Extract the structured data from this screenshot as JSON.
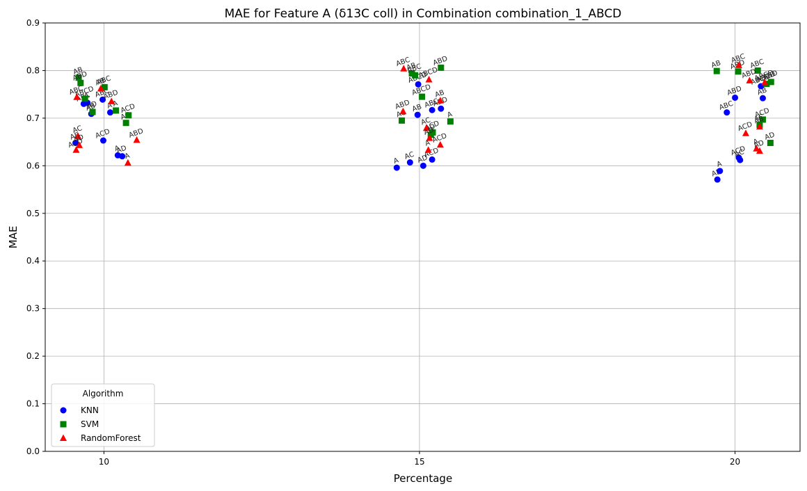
{
  "chart_data": {
    "type": "scatter",
    "title": "MAE for Feature A (δ13C coll) in Combination combination_1_ABCD",
    "xlabel": "Percentage",
    "ylabel": "MAE",
    "xlim": [
      9.07,
      21.03
    ],
    "ylim": [
      0,
      0.9
    ],
    "xticks": [
      10,
      15,
      20
    ],
    "yticks": [
      0.0,
      0.1,
      0.2,
      0.3,
      0.4,
      0.5,
      0.6,
      0.7,
      0.8,
      0.9
    ],
    "grid": true,
    "legend": {
      "title": "Algorithm",
      "position": "lower-left"
    },
    "series": [
      {
        "name": "KNN",
        "color": "#0000ff",
        "marker": "circle",
        "points": [
          {
            "x": 9.68,
            "y": 0.73,
            "label": "ABC"
          },
          {
            "x": 9.74,
            "y": 0.732,
            "label": "A"
          },
          {
            "x": 9.8,
            "y": 0.709,
            "label": "AB"
          },
          {
            "x": 9.98,
            "y": 0.739,
            "label": "ABC"
          },
          {
            "x": 10.1,
            "y": 0.712,
            "label": "A"
          },
          {
            "x": 9.55,
            "y": 0.648,
            "label": "AB"
          },
          {
            "x": 9.99,
            "y": 0.653,
            "label": "ACD"
          },
          {
            "x": 10.22,
            "y": 0.622,
            "label": "A"
          },
          {
            "x": 10.29,
            "y": 0.62,
            "label": "AD"
          },
          {
            "x": 14.64,
            "y": 0.596,
            "label": "A"
          },
          {
            "x": 14.85,
            "y": 0.607,
            "label": "AC"
          },
          {
            "x": 15.06,
            "y": 0.6,
            "label": "AD"
          },
          {
            "x": 15.2,
            "y": 0.613,
            "label": "ACD"
          },
          {
            "x": 14.97,
            "y": 0.707,
            "label": "AB"
          },
          {
            "x": 15.2,
            "y": 0.717,
            "label": "ABC"
          },
          {
            "x": 15.34,
            "y": 0.72,
            "label": "ABD"
          },
          {
            "x": 14.98,
            "y": 0.771,
            "label": "ABCD"
          },
          {
            "x": 19.72,
            "y": 0.571,
            "label": "AD"
          },
          {
            "x": 19.76,
            "y": 0.589,
            "label": "A"
          },
          {
            "x": 20.06,
            "y": 0.617,
            "label": "ACD"
          },
          {
            "x": 20.08,
            "y": 0.612,
            "label": "AC"
          },
          {
            "x": 19.87,
            "y": 0.712,
            "label": "ABC"
          },
          {
            "x": 20.0,
            "y": 0.743,
            "label": "ABD"
          },
          {
            "x": 20.44,
            "y": 0.742,
            "label": "AB"
          },
          {
            "x": 20.41,
            "y": 0.767,
            "label": "ABCD"
          }
        ]
      },
      {
        "name": "SVM",
        "color": "#008000",
        "marker": "square",
        "points": [
          {
            "x": 9.6,
            "y": 0.785,
            "label": "AB"
          },
          {
            "x": 9.63,
            "y": 0.774,
            "label": "ABD"
          },
          {
            "x": 9.7,
            "y": 0.741,
            "label": "ABCD"
          },
          {
            "x": 9.82,
            "y": 0.713,
            "label": "AD"
          },
          {
            "x": 10.01,
            "y": 0.765,
            "label": "ABC"
          },
          {
            "x": 10.19,
            "y": 0.716,
            "label": "A"
          },
          {
            "x": 10.35,
            "y": 0.69,
            "label": "AC"
          },
          {
            "x": 10.39,
            "y": 0.706,
            "label": "ACD"
          },
          {
            "x": 14.72,
            "y": 0.695,
            "label": "AC"
          },
          {
            "x": 14.88,
            "y": 0.794,
            "label": "AB"
          },
          {
            "x": 14.93,
            "y": 0.79,
            "label": "ABC"
          },
          {
            "x": 15.04,
            "y": 0.745,
            "label": "ABCD"
          },
          {
            "x": 15.21,
            "y": 0.67,
            "label": "ACD"
          },
          {
            "x": 15.18,
            "y": 0.665,
            "label": "AD"
          },
          {
            "x": 15.34,
            "y": 0.806,
            "label": "ABD"
          },
          {
            "x": 15.49,
            "y": 0.693,
            "label": "A"
          },
          {
            "x": 19.71,
            "y": 0.799,
            "label": "AB"
          },
          {
            "x": 20.05,
            "y": 0.798,
            "label": "ABD"
          },
          {
            "x": 20.39,
            "y": 0.686,
            "label": "AC"
          },
          {
            "x": 20.44,
            "y": 0.697,
            "label": "ACD"
          },
          {
            "x": 20.36,
            "y": 0.8,
            "label": "ABC"
          },
          {
            "x": 20.5,
            "y": 0.772,
            "label": "ABCD"
          },
          {
            "x": 20.57,
            "y": 0.776,
            "label": "ABD"
          },
          {
            "x": 20.56,
            "y": 0.648,
            "label": "AD"
          }
        ]
      },
      {
        "name": "RandomForest",
        "color": "#ff0000",
        "marker": "triangle",
        "points": [
          {
            "x": 9.57,
            "y": 0.744,
            "label": "ABC"
          },
          {
            "x": 9.56,
            "y": 0.633,
            "label": "ACD"
          },
          {
            "x": 9.59,
            "y": 0.662,
            "label": "AC"
          },
          {
            "x": 9.61,
            "y": 0.643,
            "label": "AD"
          },
          {
            "x": 9.95,
            "y": 0.762,
            "label": "AB"
          },
          {
            "x": 10.12,
            "y": 0.735,
            "label": "ABD"
          },
          {
            "x": 10.38,
            "y": 0.606,
            "label": "A"
          },
          {
            "x": 10.52,
            "y": 0.654,
            "label": "ABD"
          },
          {
            "x": 14.75,
            "y": 0.804,
            "label": "ABC"
          },
          {
            "x": 14.74,
            "y": 0.714,
            "label": "ABD"
          },
          {
            "x": 15.11,
            "y": 0.679,
            "label": "AC"
          },
          {
            "x": 15.16,
            "y": 0.658,
            "label": "AD"
          },
          {
            "x": 15.14,
            "y": 0.633,
            "label": "A"
          },
          {
            "x": 15.15,
            "y": 0.781,
            "label": "ABCD"
          },
          {
            "x": 15.33,
            "y": 0.737,
            "label": "AB"
          },
          {
            "x": 15.33,
            "y": 0.644,
            "label": "ACD"
          },
          {
            "x": 20.06,
            "y": 0.811,
            "label": "ABC"
          },
          {
            "x": 20.17,
            "y": 0.668,
            "label": "ACD"
          },
          {
            "x": 20.23,
            "y": 0.779,
            "label": "ABD"
          },
          {
            "x": 20.34,
            "y": 0.636,
            "label": "A"
          },
          {
            "x": 20.39,
            "y": 0.631,
            "label": "AD"
          },
          {
            "x": 20.39,
            "y": 0.682,
            "label": "AB"
          },
          {
            "x": 20.47,
            "y": 0.775,
            "label": "ABCD"
          }
        ]
      }
    ]
  }
}
